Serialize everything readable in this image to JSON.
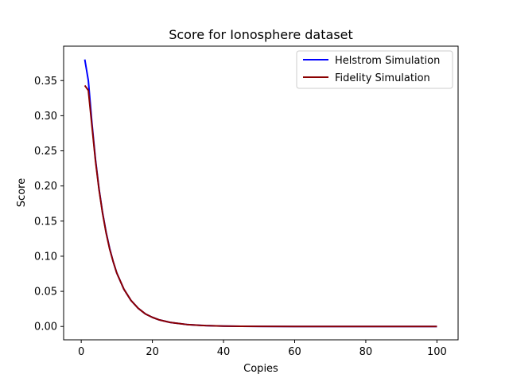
{
  "chart_data": {
    "type": "line",
    "title": "Score for Ionosphere dataset",
    "xlabel": "Copies",
    "ylabel": "Score",
    "xlim": [
      -4.95,
      105.95
    ],
    "ylim": [
      -0.019,
      0.399
    ],
    "xticks": [
      0,
      20,
      40,
      60,
      80,
      100
    ],
    "yticks": [
      0.0,
      0.05,
      0.1,
      0.15,
      0.2,
      0.25,
      0.3,
      0.35
    ],
    "xtick_labels": [
      "0",
      "20",
      "40",
      "60",
      "80",
      "100"
    ],
    "ytick_labels": [
      "0.00",
      "0.05",
      "0.10",
      "0.15",
      "0.20",
      "0.25",
      "0.30",
      "0.35"
    ],
    "grid": false,
    "legend_position": "top-right",
    "x": [
      1,
      2,
      3,
      4,
      5,
      6,
      7,
      8,
      9,
      10,
      12,
      14,
      16,
      18,
      20,
      22,
      25,
      30,
      35,
      40,
      45,
      50,
      60,
      70,
      80,
      90,
      100
    ],
    "series": [
      {
        "name": "Helstrom Simulation",
        "color": "#0000ff",
        "values": [
          0.38,
          0.35,
          0.29,
          0.238,
          0.196,
          0.162,
          0.134,
          0.111,
          0.092,
          0.076,
          0.053,
          0.037,
          0.026,
          0.018,
          0.013,
          0.0093,
          0.0058,
          0.0026,
          0.0012,
          0.0006,
          0.0003,
          0.0001,
          0.0,
          0.0,
          0.0,
          0.0,
          0.0
        ]
      },
      {
        "name": "Fidelity Simulation",
        "color": "#8b0000",
        "values": [
          0.343,
          0.336,
          0.286,
          0.236,
          0.195,
          0.161,
          0.133,
          0.11,
          0.092,
          0.076,
          0.053,
          0.037,
          0.026,
          0.018,
          0.013,
          0.0093,
          0.0058,
          0.0026,
          0.0012,
          0.0006,
          0.0003,
          0.0001,
          0.0,
          0.0,
          0.0,
          0.0,
          0.0
        ]
      }
    ]
  }
}
